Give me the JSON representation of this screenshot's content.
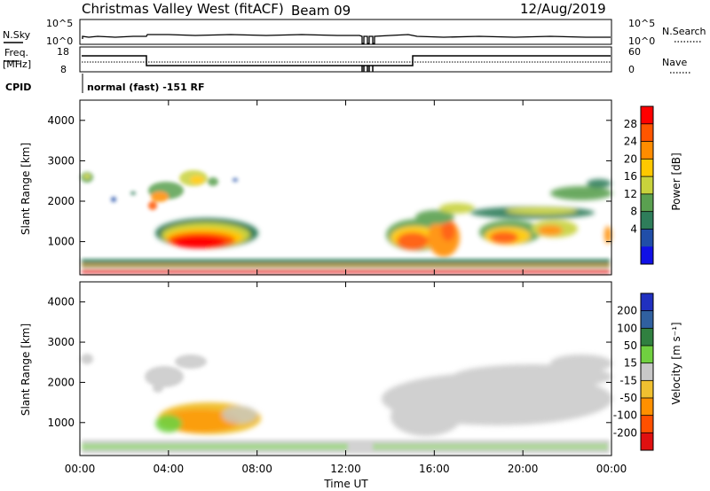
{
  "header": {
    "station_title": "Christmas Valley West (fitACF)",
    "beam_label": "Beam 09",
    "date": "12/Aug/2019"
  },
  "strips": {
    "nsky_label": "N.Sky",
    "nsky_ticks": [
      "10^5",
      "10^0"
    ],
    "nsearch_label": "N.Search",
    "nsearch_ticks": [
      "10^5",
      "10^0"
    ],
    "freq_label_1": "Freq.",
    "freq_label_2": "[MHz]",
    "freq_ticks": [
      "18",
      "8"
    ],
    "nave_label": "Nave",
    "nave_ticks": [
      "60",
      "0"
    ],
    "cpid_label": "CPID",
    "cpid_value": "normal (fast) -151 RF"
  },
  "chart_data": [
    {
      "type": "heatmap",
      "name": "power",
      "ylabel": "Slant Range [km]",
      "yticks": [
        "4000",
        "3000",
        "2000",
        "1000"
      ],
      "xticks": [
        "00:00",
        "04:00",
        "08:00",
        "12:00",
        "16:00",
        "20:00",
        "00:00"
      ],
      "xlim_hours": [
        0,
        24
      ],
      "ylim_km": [
        180,
        4500
      ],
      "colorbar_label": "Power [dB]",
      "colorbar_ticks": [
        "28",
        "24",
        "20",
        "16",
        "12",
        "8",
        "4"
      ],
      "colorbar_colors": [
        "#ff0000",
        "#ff5500",
        "#ff8c00",
        "#ffc800",
        "#c8d23c",
        "#5aa050",
        "#2e7d5a",
        "#204ea8",
        "#1010e6"
      ]
    },
    {
      "type": "heatmap",
      "name": "velocity",
      "ylabel": "Slant Range [km]",
      "yticks": [
        "4000",
        "3000",
        "2000",
        "1000"
      ],
      "xticks": [
        "00:00",
        "04:00",
        "08:00",
        "12:00",
        "16:00",
        "20:00",
        "00:00"
      ],
      "xlim_hours": [
        0,
        24
      ],
      "ylim_km": [
        180,
        4500
      ],
      "xlabel": "Time UT",
      "colorbar_label": "Velocity [m s⁻¹]",
      "colorbar_ticks": [
        "200",
        "100",
        "50",
        "15",
        "-15",
        "-50",
        "-100",
        "-200"
      ],
      "colorbar_colors": [
        "#2030c0",
        "#3060a0",
        "#308040",
        "#70d040",
        "#c8c8c8",
        "#f0c030",
        "#ff9000",
        "#ff5000",
        "#e01010"
      ]
    }
  ]
}
